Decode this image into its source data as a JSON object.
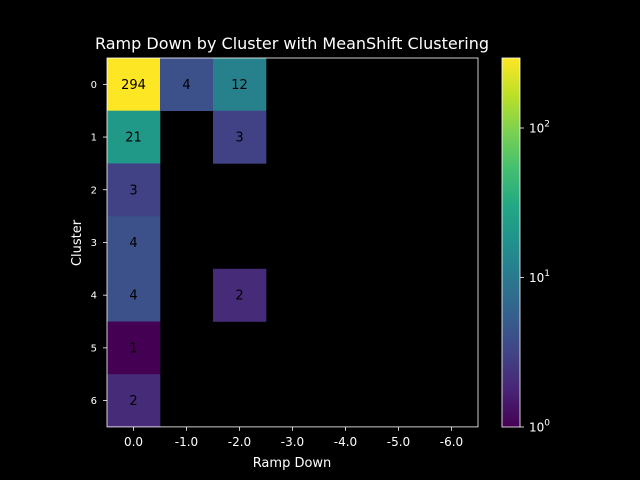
{
  "chart_data": {
    "type": "heatmap",
    "title": "Ramp Down by Cluster with MeanShift Clustering",
    "xlabel": "Ramp Down",
    "ylabel": "Cluster",
    "x_categories": [
      "0.0",
      "-1.0",
      "-2.0",
      "-3.0",
      "-4.0",
      "-5.0",
      "-6.0"
    ],
    "y_categories": [
      "0",
      "1",
      "2",
      "3",
      "4",
      "5",
      "6"
    ],
    "values": [
      [
        294,
        4,
        12,
        null,
        null,
        null,
        null
      ],
      [
        21,
        null,
        3,
        null,
        null,
        null,
        null
      ],
      [
        3,
        null,
        null,
        null,
        null,
        null,
        null
      ],
      [
        4,
        null,
        null,
        null,
        null,
        null,
        null
      ],
      [
        4,
        null,
        2,
        null,
        null,
        null,
        null
      ],
      [
        1,
        null,
        null,
        null,
        null,
        null,
        null
      ],
      [
        2,
        null,
        null,
        null,
        null,
        null,
        null
      ]
    ],
    "colorbar": {
      "scale": "log",
      "range": [
        1,
        294
      ],
      "colormap": "viridis",
      "ticks": [
        {
          "value": 1,
          "base": "10",
          "exp": "0"
        },
        {
          "value": 10,
          "base": "10",
          "exp": "1"
        },
        {
          "value": 100,
          "base": "10",
          "exp": "2"
        }
      ]
    },
    "colors": {
      "background": "#000000",
      "empty_cell": "#000000",
      "text": "#ffffff"
    }
  }
}
